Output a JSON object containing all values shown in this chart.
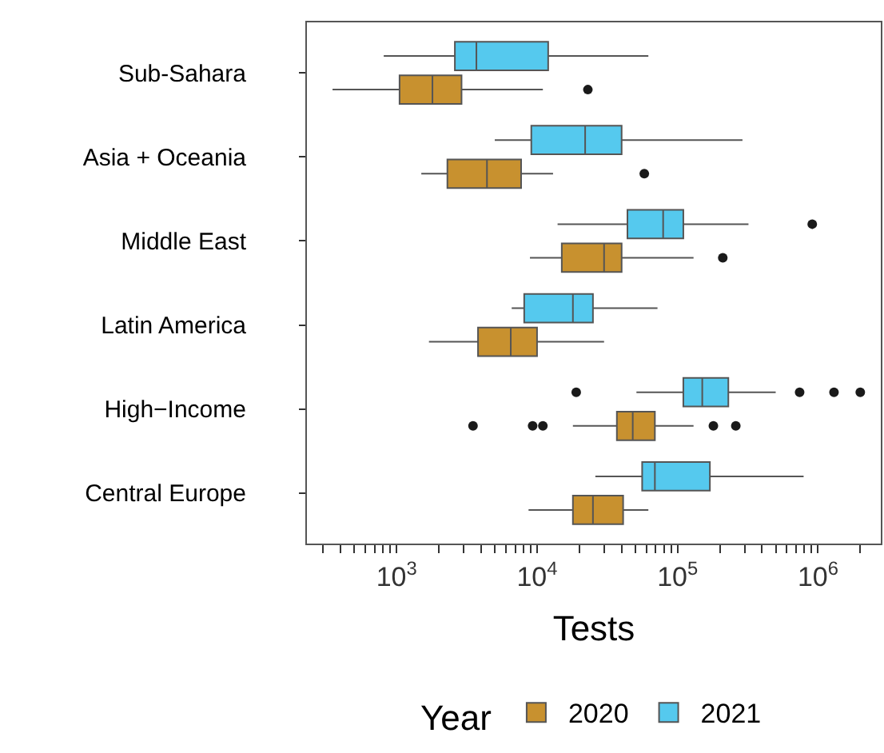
{
  "chart_data": {
    "type": "box",
    "orientation": "horizontal",
    "xlabel": "Tests",
    "legend_title": "Year",
    "legend": "bottom",
    "log": "x",
    "categories": [
      "Sub-Sahara",
      "Asia + Oceania",
      "Middle East",
      "Latin America",
      "High−Income",
      "Central Europe"
    ],
    "xlim": [
      230,
      2800000
    ],
    "xticks": [
      {
        "value": 300,
        "label": null
      },
      {
        "value": 400,
        "label": null
      },
      {
        "value": 500,
        "label": null
      },
      {
        "value": 600,
        "label": null
      },
      {
        "value": 700,
        "label": null
      },
      {
        "value": 800,
        "label": null
      },
      {
        "value": 900,
        "label": null
      },
      {
        "value": 1000,
        "label": "10$^{3}$"
      },
      {
        "value": 2000,
        "label": null
      },
      {
        "value": 3000,
        "label": null
      },
      {
        "value": 4000,
        "label": null
      },
      {
        "value": 5000,
        "label": null
      },
      {
        "value": 6000,
        "label": null
      },
      {
        "value": 7000,
        "label": null
      },
      {
        "value": 8000,
        "label": null
      },
      {
        "value": 9000,
        "label": null
      },
      {
        "value": 10000,
        "label": "10$^{4}$"
      },
      {
        "value": 20000,
        "label": null
      },
      {
        "value": 30000,
        "label": null
      },
      {
        "value": 40000,
        "label": null
      },
      {
        "value": 50000,
        "label": null
      },
      {
        "value": 60000,
        "label": null
      },
      {
        "value": 70000,
        "label": null
      },
      {
        "value": 80000,
        "label": null
      },
      {
        "value": 90000,
        "label": null
      },
      {
        "value": 100000,
        "label": "10$^{5}$"
      },
      {
        "value": 200000,
        "label": null
      },
      {
        "value": 300000,
        "label": null
      },
      {
        "value": 400000,
        "label": null
      },
      {
        "value": 500000,
        "label": null
      },
      {
        "value": 600000,
        "label": null
      },
      {
        "value": 700000,
        "label": null
      },
      {
        "value": 800000,
        "label": null
      },
      {
        "value": 900000,
        "label": null
      },
      {
        "value": 1000000,
        "label": "10$^{6}$"
      },
      {
        "value": 2000000,
        "label": null
      }
    ],
    "series": [
      {
        "name": "2020",
        "color": "#c8912f",
        "boxes": [
          {
            "low": 350,
            "q1": 1050,
            "median": 1800,
            "q3": 2900,
            "high": 11000,
            "outliers": [
              23000
            ]
          },
          {
            "low": 1500,
            "q1": 2300,
            "median": 4400,
            "q3": 7700,
            "high": 13000,
            "outliers": [
              58000
            ]
          },
          {
            "low": 8900,
            "q1": 15000,
            "median": 30000,
            "q3": 40000,
            "high": 130000,
            "outliers": [
              210000
            ]
          },
          {
            "low": 1700,
            "q1": 3800,
            "median": 6500,
            "q3": 10000,
            "high": 30000
          },
          {
            "low": 18000,
            "q1": 37000,
            "median": 48000,
            "q3": 69000,
            "high": 130000,
            "outliers": [
              3500,
              9300,
              11000,
              180000,
              260000
            ]
          },
          {
            "low": 8700,
            "q1": 18000,
            "median": 25000,
            "q3": 41000,
            "high": 62000
          }
        ]
      },
      {
        "name": "2021",
        "color": "#55c9ee",
        "boxes": [
          {
            "low": 810,
            "q1": 2600,
            "median": 3700,
            "q3": 12000,
            "high": 62000
          },
          {
            "low": 5000,
            "q1": 9100,
            "median": 22000,
            "q3": 40000,
            "high": 290000
          },
          {
            "low": 14000,
            "q1": 44000,
            "median": 79000,
            "q3": 110000,
            "high": 320000,
            "outliers": [
              910000
            ]
          },
          {
            "low": 6600,
            "q1": 8100,
            "median": 18000,
            "q3": 25000,
            "high": 72000
          },
          {
            "low": 51000,
            "q1": 110000,
            "median": 150000,
            "q3": 230000,
            "high": 500000,
            "outliers": [
              19000,
              740000,
              1300000,
              2000000
            ]
          },
          {
            "low": 26000,
            "q1": 56000,
            "median": 69000,
            "q3": 170000,
            "high": 790000
          }
        ]
      }
    ]
  }
}
